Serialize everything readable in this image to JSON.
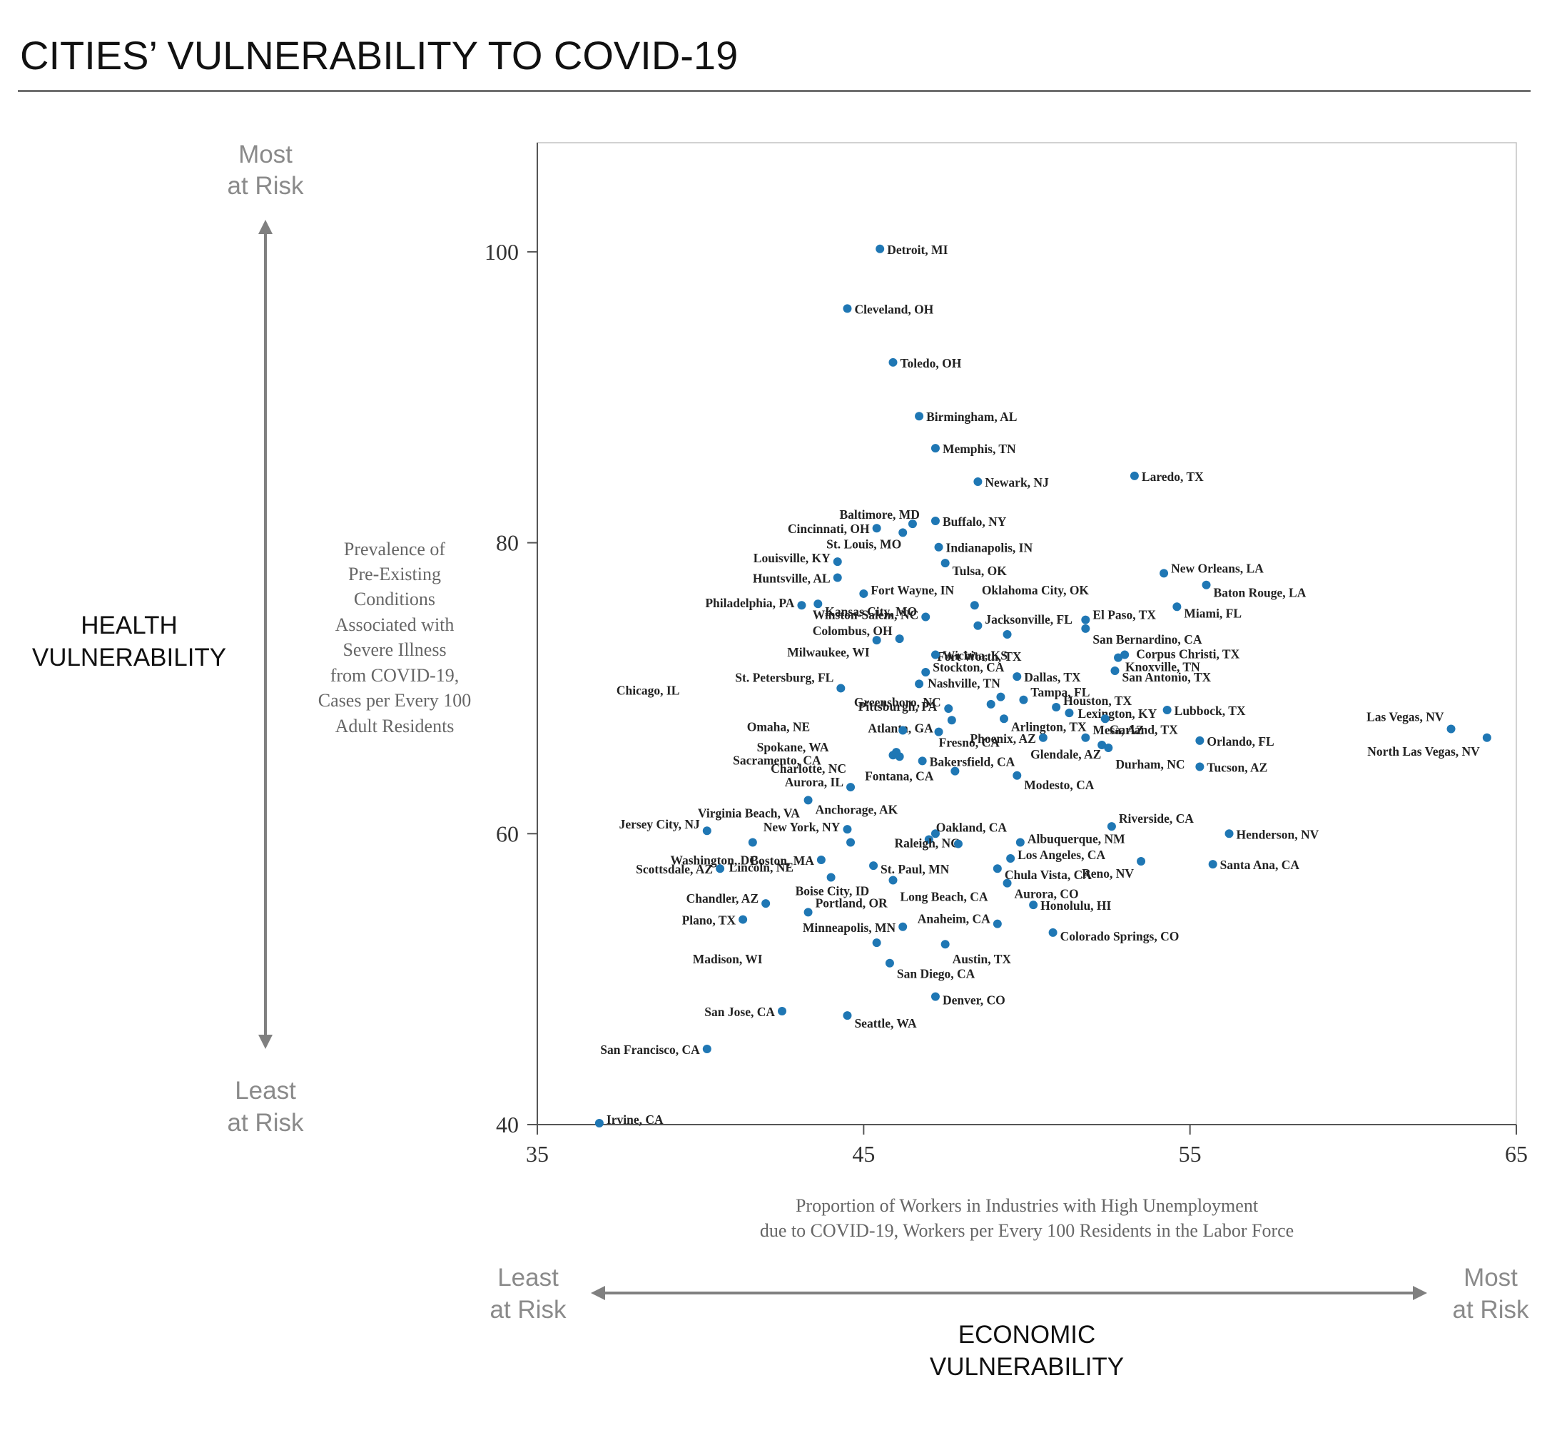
{
  "page": {
    "title": "CITIES’ VULNERABILITY TO COVID-19"
  },
  "colors": {
    "point": "#1f77b4",
    "axis_gray": "#808080",
    "risk_gray": "#8a8a8a",
    "text": "#111111"
  },
  "y_side": {
    "top": [
      "Most",
      "at Risk"
    ],
    "bottom": [
      "Least",
      "at Risk"
    ],
    "heading": [
      "HEALTH",
      "VULNERABILITY"
    ],
    "description": [
      "Prevalence of",
      "Pre-Existing",
      "Conditions",
      "Associated with",
      "Severe Illness",
      "from COVID-19,",
      "Cases per Every 100",
      "Adult Residents"
    ]
  },
  "x_side": {
    "left": [
      "Least",
      "at Risk"
    ],
    "right": [
      "Most",
      "at Risk"
    ],
    "heading": [
      "ECONOMIC",
      "VULNERABILITY"
    ],
    "description": [
      "Proportion of Workers in Industries with High Unemployment",
      "due to COVID-19, Workers per Every 100 Residents in the Labor Force"
    ]
  },
  "chart_data": {
    "type": "scatter",
    "title": "CITIES’ VULNERABILITY TO COVID-19",
    "xlabel": "Proportion of Workers in Industries with High Unemployment due to COVID-19, Workers per Every 100 Residents in the Labor Force",
    "ylabel": "Prevalence of Pre-Existing Conditions Associated with Severe Illness from COVID-19, Cases per Every 100 Adult Residents",
    "xlim": [
      35,
      65
    ],
    "ylim": [
      40,
      107.5
    ],
    "xticks": [
      35,
      45,
      55,
      65
    ],
    "yticks": [
      40,
      60,
      80,
      100
    ],
    "grid": false,
    "points": [
      {
        "label": "Detroit, MI",
        "x": 45.5,
        "y": 100.2
      },
      {
        "label": "Cleveland, OH",
        "x": 44.5,
        "y": 96.1
      },
      {
        "label": "Toledo, OH",
        "x": 45.9,
        "y": 92.4
      },
      {
        "label": "Birmingham, AL",
        "x": 46.7,
        "y": 88.7
      },
      {
        "label": "Memphis, TN",
        "x": 47.2,
        "y": 86.5
      },
      {
        "label": "Newark, NJ",
        "x": 48.5,
        "y": 84.2
      },
      {
        "label": "Laredo, TX",
        "x": 53.3,
        "y": 84.6
      },
      {
        "label": "Baltimore, MD",
        "x": 46.5,
        "y": 81.3
      },
      {
        "label": "Buffalo, NY",
        "x": 47.2,
        "y": 81.5
      },
      {
        "label": "Cincinnati, OH",
        "x": 45.4,
        "y": 81.0
      },
      {
        "label": "St. Louis, MO",
        "x": 46.2,
        "y": 80.7
      },
      {
        "label": "Indianapolis, IN",
        "x": 47.3,
        "y": 79.7
      },
      {
        "label": "Louisville, KY",
        "x": 44.2,
        "y": 78.7
      },
      {
        "label": "Tulsa, OK",
        "x": 47.5,
        "y": 78.6
      },
      {
        "label": "Huntsville, AL",
        "x": 44.2,
        "y": 77.6
      },
      {
        "label": "New Orleans, LA",
        "x": 54.2,
        "y": 77.9
      },
      {
        "label": "Baton Rouge, LA",
        "x": 55.5,
        "y": 77.1
      },
      {
        "label": "Fort Wayne, IN",
        "x": 45.0,
        "y": 76.5
      },
      {
        "label": "Philadelphia, PA",
        "x": 43.1,
        "y": 75.7
      },
      {
        "label": "Kansas City, MO",
        "x": 43.6,
        "y": 75.8
      },
      {
        "label": "Oklahoma City, OK",
        "x": 48.4,
        "y": 75.7
      },
      {
        "label": "Miami, FL",
        "x": 54.6,
        "y": 75.6
      },
      {
        "label": "Winston-Salem, NC",
        "x": 46.9,
        "y": 74.9
      },
      {
        "label": "El Paso, TX",
        "x": 51.8,
        "y": 74.7
      },
      {
        "label": "Jacksonville, FL",
        "x": 48.5,
        "y": 74.3
      },
      {
        "label": "Colombus, OH",
        "x": 46.1,
        "y": 73.4
      },
      {
        "label": "San Bernardino, CA",
        "x": 51.8,
        "y": 74.1
      },
      {
        "label": "Fort Worth, TX",
        "x": 49.4,
        "y": 73.7
      },
      {
        "label": "Milwaukee, WI",
        "x": 45.4,
        "y": 73.3
      },
      {
        "label": "Wichita, KS",
        "x": 47.2,
        "y": 72.3
      },
      {
        "label": "Corpus Christi, TX",
        "x": 53.0,
        "y": 72.3
      },
      {
        "label": "Knoxville, TN",
        "x": 52.8,
        "y": 72.1
      },
      {
        "label": "Stockton, CA",
        "x": 46.9,
        "y": 71.1
      },
      {
        "label": "San Antonio, TX",
        "x": 52.7,
        "y": 71.2
      },
      {
        "label": "Dallas, TX",
        "x": 49.7,
        "y": 70.8
      },
      {
        "label": "St. Petersburg, FL",
        "x": 44.3,
        "y": 70.0
      },
      {
        "label": "Nashville, TN",
        "x": 46.7,
        "y": 70.3
      },
      {
        "label": "Tampa, FL",
        "x": 49.9,
        "y": 69.2
      },
      {
        "label": "Greensboro, NC",
        "x": 48.9,
        "y": 68.9
      },
      {
        "label": "Houston, TX",
        "x": 50.9,
        "y": 68.7
      },
      {
        "label": "Chicago, IL",
        "x": 49.2,
        "y": 69.4
      },
      {
        "label": "Lexington, KY",
        "x": 51.3,
        "y": 68.3
      },
      {
        "label": "Lubbock, TX",
        "x": 54.3,
        "y": 68.5
      },
      {
        "label": "Pittsburgh, PA",
        "x": 47.6,
        "y": 68.6
      },
      {
        "label": "Atlanta, GA",
        "x": 47.7,
        "y": 67.8
      },
      {
        "label": "Arlington, TX",
        "x": 49.3,
        "y": 67.9
      },
      {
        "label": "Garland, TX",
        "x": 52.4,
        "y": 67.9
      },
      {
        "label": "Las Vegas, NV",
        "x": 63.0,
        "y": 67.2
      },
      {
        "label": "Omaha, NE",
        "x": 46.2,
        "y": 67.1
      },
      {
        "label": "Fresno, CA",
        "x": 47.3,
        "y": 67.0
      },
      {
        "label": "Phoenix, AZ",
        "x": 50.5,
        "y": 66.6
      },
      {
        "label": "Mesa, AZ",
        "x": 51.8,
        "y": 66.6
      },
      {
        "label": "Orlando, FL",
        "x": 55.3,
        "y": 66.4
      },
      {
        "label": "North Las Vegas, NV",
        "x": 64.1,
        "y": 66.6
      },
      {
        "label": "Glendale, AZ",
        "x": 52.3,
        "y": 66.1
      },
      {
        "label": "Durham, NC",
        "x": 52.5,
        "y": 65.9
      },
      {
        "label": "Spokane, WA",
        "x": 45.9,
        "y": 65.4
      },
      {
        "label": "Sacramento, CA",
        "x": 46.1,
        "y": 65.3
      },
      {
        "label": "Bakersfield, CA",
        "x": 46.8,
        "y": 65.0
      },
      {
        "label": "Charlotte, NC",
        "x": 46.0,
        "y": 65.6
      },
      {
        "label": "Tucson, AZ",
        "x": 55.3,
        "y": 64.6
      },
      {
        "label": "Fontana, CA",
        "x": 47.8,
        "y": 64.3
      },
      {
        "label": "Modesto, CA",
        "x": 49.7,
        "y": 64.0
      },
      {
        "label": "Aurora, IL",
        "x": 44.6,
        "y": 63.2
      },
      {
        "label": "Anchorage, AK",
        "x": 43.3,
        "y": 62.3
      },
      {
        "label": "Riverside, CA",
        "x": 52.6,
        "y": 60.5
      },
      {
        "label": "Jersey City, NJ",
        "x": 40.2,
        "y": 60.2
      },
      {
        "label": "Virginia Beach, VA",
        "x": 47.2,
        "y": 60.0
      },
      {
        "label": "Oakland, CA",
        "x": 47.0,
        "y": 59.6
      },
      {
        "label": "New York, NY",
        "x": 44.5,
        "y": 60.3
      },
      {
        "label": "Henderson, NV",
        "x": 56.2,
        "y": 60.0
      },
      {
        "label": "Albuquerque, NM",
        "x": 49.8,
        "y": 59.4
      },
      {
        "label": "Raleigh, NC",
        "x": 41.6,
        "y": 59.4
      },
      {
        "label": "Lincoln, NE",
        "x": 44.6,
        "y": 59.4
      },
      {
        "label": "Washington, DC",
        "x": 47.9,
        "y": 59.3
      },
      {
        "label": "Los Angeles, CA",
        "x": 49.5,
        "y": 58.3
      },
      {
        "label": "Boston, MA",
        "x": 43.7,
        "y": 58.2
      },
      {
        "label": "Reno, NV",
        "x": 53.5,
        "y": 58.1
      },
      {
        "label": "Santa Ana, CA",
        "x": 55.7,
        "y": 57.9
      },
      {
        "label": "St. Paul, MN",
        "x": 45.3,
        "y": 57.8
      },
      {
        "label": "Scottsdale, AZ",
        "x": 40.6,
        "y": 57.6
      },
      {
        "label": "Chula Vista, CA",
        "x": 49.1,
        "y": 57.6
      },
      {
        "label": "Boise City, ID",
        "x": 44.0,
        "y": 57.0
      },
      {
        "label": "Long Beach, CA",
        "x": 45.9,
        "y": 56.8
      },
      {
        "label": "Aurora, CO",
        "x": 49.4,
        "y": 56.6
      },
      {
        "label": "Chandler, AZ",
        "x": 42.0,
        "y": 55.2
      },
      {
        "label": "Honolulu, HI",
        "x": 50.2,
        "y": 55.1
      },
      {
        "label": "Portland, OR",
        "x": 43.3,
        "y": 54.6
      },
      {
        "label": "Plano, TX",
        "x": 41.3,
        "y": 54.1
      },
      {
        "label": "Anaheim, CA",
        "x": 49.1,
        "y": 53.8
      },
      {
        "label": "Minneapolis, MN",
        "x": 46.2,
        "y": 53.6
      },
      {
        "label": "Colorado Springs, CO",
        "x": 50.8,
        "y": 53.2
      },
      {
        "label": "Madison, WI",
        "x": 45.4,
        "y": 52.5
      },
      {
        "label": "Austin, TX",
        "x": 47.5,
        "y": 52.4
      },
      {
        "label": "San Diego, CA",
        "x": 45.8,
        "y": 51.1
      },
      {
        "label": "Denver, CO",
        "x": 47.2,
        "y": 48.8
      },
      {
        "label": "San Jose, CA",
        "x": 42.5,
        "y": 47.8
      },
      {
        "label": "Seattle, WA",
        "x": 44.5,
        "y": 47.5
      },
      {
        "label": "San Francisco, CA",
        "x": 40.2,
        "y": 45.2
      },
      {
        "label": "Irvine, CA",
        "x": 36.9,
        "y": 40.1
      }
    ]
  }
}
